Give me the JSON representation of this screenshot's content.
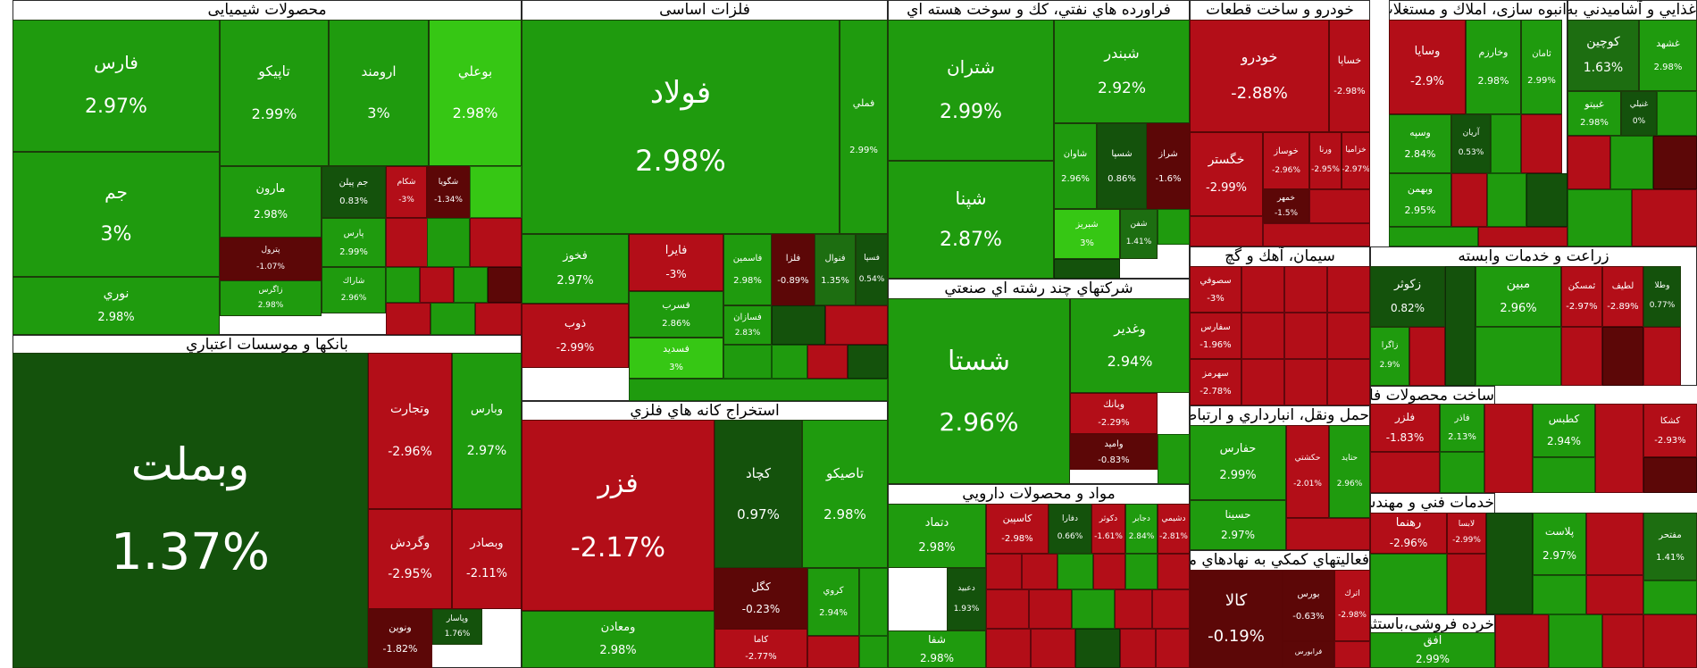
{
  "chart_data": {
    "type": "treemap",
    "colors": {
      "up_strong": "#1f9b0e",
      "up_light": "#36c714",
      "up_dark": "#14520c",
      "down_strong": "#b30e18",
      "down_dark": "#5c0707",
      "neutral": "#1d6e11"
    },
    "sectors": [
      {
        "name": "محصولات شیمیایی",
        "stocks": [
          {
            "symbol": "فارس",
            "change": "2.97%"
          },
          {
            "symbol": "جم",
            "change": "3%"
          },
          {
            "symbol": "نوري",
            "change": "2.98%"
          },
          {
            "symbol": "تاپيكو",
            "change": "2.99%"
          },
          {
            "symbol": "ارومند",
            "change": "3%"
          },
          {
            "symbol": "بوعلي",
            "change": "2.98%"
          },
          {
            "symbol": "مارون",
            "change": "2.98%"
          },
          {
            "symbol": "جم پيلن",
            "change": "0.83%"
          },
          {
            "symbol": "شكام",
            "change": "-3%"
          },
          {
            "symbol": "شگويا",
            "change": "-1.34%"
          },
          {
            "symbol": "پترول",
            "change": "-1.07%"
          },
          {
            "symbol": "پارس",
            "change": "2.99%"
          },
          {
            "symbol": "شاراك",
            "change": "2.96%"
          },
          {
            "symbol": "زاگرس",
            "change": "2.98%"
          }
        ]
      },
      {
        "name": "بانكها و موسسات اعتباري",
        "stocks": [
          {
            "symbol": "وبملت",
            "change": "1.37%"
          },
          {
            "symbol": "وتجارت",
            "change": "-2.96%"
          },
          {
            "symbol": "وبارس",
            "change": "2.97%"
          },
          {
            "symbol": "وگردش",
            "change": "-2.95%"
          },
          {
            "symbol": "وبصادر",
            "change": "-2.11%"
          },
          {
            "symbol": "ونوين",
            "change": "-1.82%"
          },
          {
            "symbol": "وپاسار",
            "change": "1.76%"
          }
        ]
      },
      {
        "name": "فلزات اساسی",
        "stocks": [
          {
            "symbol": "فولاد",
            "change": "2.98%"
          },
          {
            "symbol": "فملي",
            "change": "2.99%"
          },
          {
            "symbol": "فخوز",
            "change": "2.97%"
          },
          {
            "symbol": "فايرا",
            "change": "-3%"
          },
          {
            "symbol": "ذوب",
            "change": "-2.99%"
          },
          {
            "symbol": "فسرب",
            "change": "2.86%"
          },
          {
            "symbol": "فاسمين",
            "change": "2.98%"
          },
          {
            "symbol": "فلزا",
            "change": "-0.89%"
          },
          {
            "symbol": "فنوال",
            "change": "1.35%"
          },
          {
            "symbol": "فسپا",
            "change": "0.54%"
          },
          {
            "symbol": "فسديد",
            "change": "3%"
          },
          {
            "symbol": "فسازان",
            "change": "2.83%"
          }
        ]
      },
      {
        "name": "استخراج كانه هاي فلزي",
        "stocks": [
          {
            "symbol": "فزر",
            "change": "-2.17%"
          },
          {
            "symbol": "كچاد",
            "change": "0.97%"
          },
          {
            "symbol": "تاصيكو",
            "change": "2.98%"
          },
          {
            "symbol": "كگل",
            "change": "-0.23%"
          },
          {
            "symbol": "كروي",
            "change": "2.94%"
          },
          {
            "symbol": "ومعادن",
            "change": "2.98%"
          },
          {
            "symbol": "كاما",
            "change": "-2.77%"
          }
        ]
      },
      {
        "name": "فراورده هاي نفتي، كك و سوخت هسته اي",
        "stocks": [
          {
            "symbol": "شتران",
            "change": "2.99%"
          },
          {
            "symbol": "شبندر",
            "change": "2.92%"
          },
          {
            "symbol": "شپنا",
            "change": "2.87%"
          },
          {
            "symbol": "شاوان",
            "change": "2.96%"
          },
          {
            "symbol": "شسپا",
            "change": "0.86%"
          },
          {
            "symbol": "شراز",
            "change": "-1.6%"
          },
          {
            "symbol": "شبريز",
            "change": "3%"
          },
          {
            "symbol": "شفن",
            "change": "1.41%"
          }
        ]
      },
      {
        "name": "شركتهاي چند رشته اي صنعتي",
        "stocks": [
          {
            "symbol": "شستا",
            "change": "2.96%"
          },
          {
            "symbol": "وغدير",
            "change": "2.94%"
          },
          {
            "symbol": "وبانك",
            "change": "-2.29%"
          },
          {
            "symbol": "وامید",
            "change": "-0.83%"
          }
        ]
      },
      {
        "name": "مواد و محصولات دارويي",
        "stocks": [
          {
            "symbol": "دتماد",
            "change": "2.98%"
          },
          {
            "symbol": "كاسپين",
            "change": "-2.98%"
          },
          {
            "symbol": "دعبيد",
            "change": "1.93%"
          },
          {
            "symbol": "دفارا",
            "change": "0.66%"
          },
          {
            "symbol": "دكوثر",
            "change": "-1.61%"
          },
          {
            "symbol": "دجابر",
            "change": "2.84%"
          },
          {
            "symbol": "دشيمي",
            "change": "-2.81%"
          },
          {
            "symbol": "شفا",
            "change": "2.98%"
          }
        ]
      },
      {
        "name": "خودرو و ساخت قطعات",
        "stocks": [
          {
            "symbol": "خودرو",
            "change": "-2.88%"
          },
          {
            "symbol": "خساپا",
            "change": "-2.98%"
          },
          {
            "symbol": "خگستر",
            "change": "-2.99%"
          },
          {
            "symbol": "خوساز",
            "change": "-2.96%"
          },
          {
            "symbol": "ورنا",
            "change": "-2.95%"
          },
          {
            "symbol": "خزامیا",
            "change": "-2.97%"
          },
          {
            "symbol": "خمهر",
            "change": "-1.5%"
          }
        ]
      },
      {
        "name": "سیمان، آهك و گچ",
        "stocks": [
          {
            "symbol": "سصوفي",
            "change": "-3%"
          },
          {
            "symbol": "سفارس",
            "change": "-1.96%"
          },
          {
            "symbol": "سهرمز",
            "change": "-2.78%"
          }
        ]
      },
      {
        "name": "حمل ونقل، انبارداري و ارتباطات",
        "stocks": [
          {
            "symbol": "حفارس",
            "change": "2.99%"
          },
          {
            "symbol": "حكشتي",
            "change": "-2.01%"
          },
          {
            "symbol": "حتايد",
            "change": "2.96%"
          },
          {
            "symbol": "حسينا",
            "change": "2.97%"
          }
        ]
      },
      {
        "name": "فعاليتهاي كمكي به نهادهاي مالي واسط",
        "stocks": [
          {
            "symbol": "كالا",
            "change": "-0.19%"
          },
          {
            "symbol": "بورس",
            "change": "-0.63%"
          },
          {
            "symbol": "فرابورس",
            "change": ""
          },
          {
            "symbol": "اترك",
            "change": "-2.98%"
          }
        ]
      },
      {
        "name": "انبوه سازی، املاك و مستغلات",
        "stocks": [
          {
            "symbol": "وسايا",
            "change": "-2.9%"
          },
          {
            "symbol": "وخارزم",
            "change": "2.98%"
          },
          {
            "symbol": "وسپه",
            "change": "2.84%"
          },
          {
            "symbol": "ثامان",
            "change": "2.99%"
          },
          {
            "symbol": "وبهمن",
            "change": "2.95%"
          },
          {
            "symbol": "آريان",
            "change": "0.53%"
          }
        ]
      },
      {
        "name": "غذايي و آشاميدني به جز قند و شكر",
        "stocks": [
          {
            "symbol": "كوچين",
            "change": "1.63%"
          },
          {
            "symbol": "غشهد",
            "change": "2.98%"
          },
          {
            "symbol": "غبيتو",
            "change": "2.98%"
          },
          {
            "symbol": "غنيلي",
            "change": "0%"
          }
        ]
      },
      {
        "name": "زراعت و خدمات وابسته",
        "stocks": [
          {
            "symbol": "زكوثر",
            "change": "0.82%"
          },
          {
            "symbol": "زاگرا",
            "change": "2.9%"
          },
          {
            "symbol": "مبين",
            "change": "2.96%"
          },
          {
            "symbol": "ثمسكن",
            "change": "-2.97%"
          },
          {
            "symbol": "لطيف",
            "change": "-2.89%"
          },
          {
            "symbol": "وطلا",
            "change": "0.77%"
          }
        ]
      },
      {
        "name": "ساخت محصولات فلزي",
        "stocks": [
          {
            "symbol": "فلزر",
            "change": "-1.83%"
          },
          {
            "symbol": "فاذر",
            "change": "2.13%"
          },
          {
            "symbol": "كطبس",
            "change": "2.94%"
          },
          {
            "symbol": "كشكا",
            "change": "-2.93%"
          }
        ]
      },
      {
        "name": "خدمات فني و مهندسي",
        "stocks": [
          {
            "symbol": "رهنما",
            "change": "-2.96%"
          },
          {
            "symbol": "پلاست",
            "change": "2.97%"
          },
          {
            "symbol": "لابسا",
            "change": "-2.99%"
          },
          {
            "symbol": "مفتحر",
            "change": "1.41%"
          }
        ]
      },
      {
        "name": "خرده فروشی،باستثنای وسایل نقلیه موتوری",
        "stocks": [
          {
            "symbol": "افق",
            "change": "2.99%"
          }
        ]
      }
    ]
  }
}
